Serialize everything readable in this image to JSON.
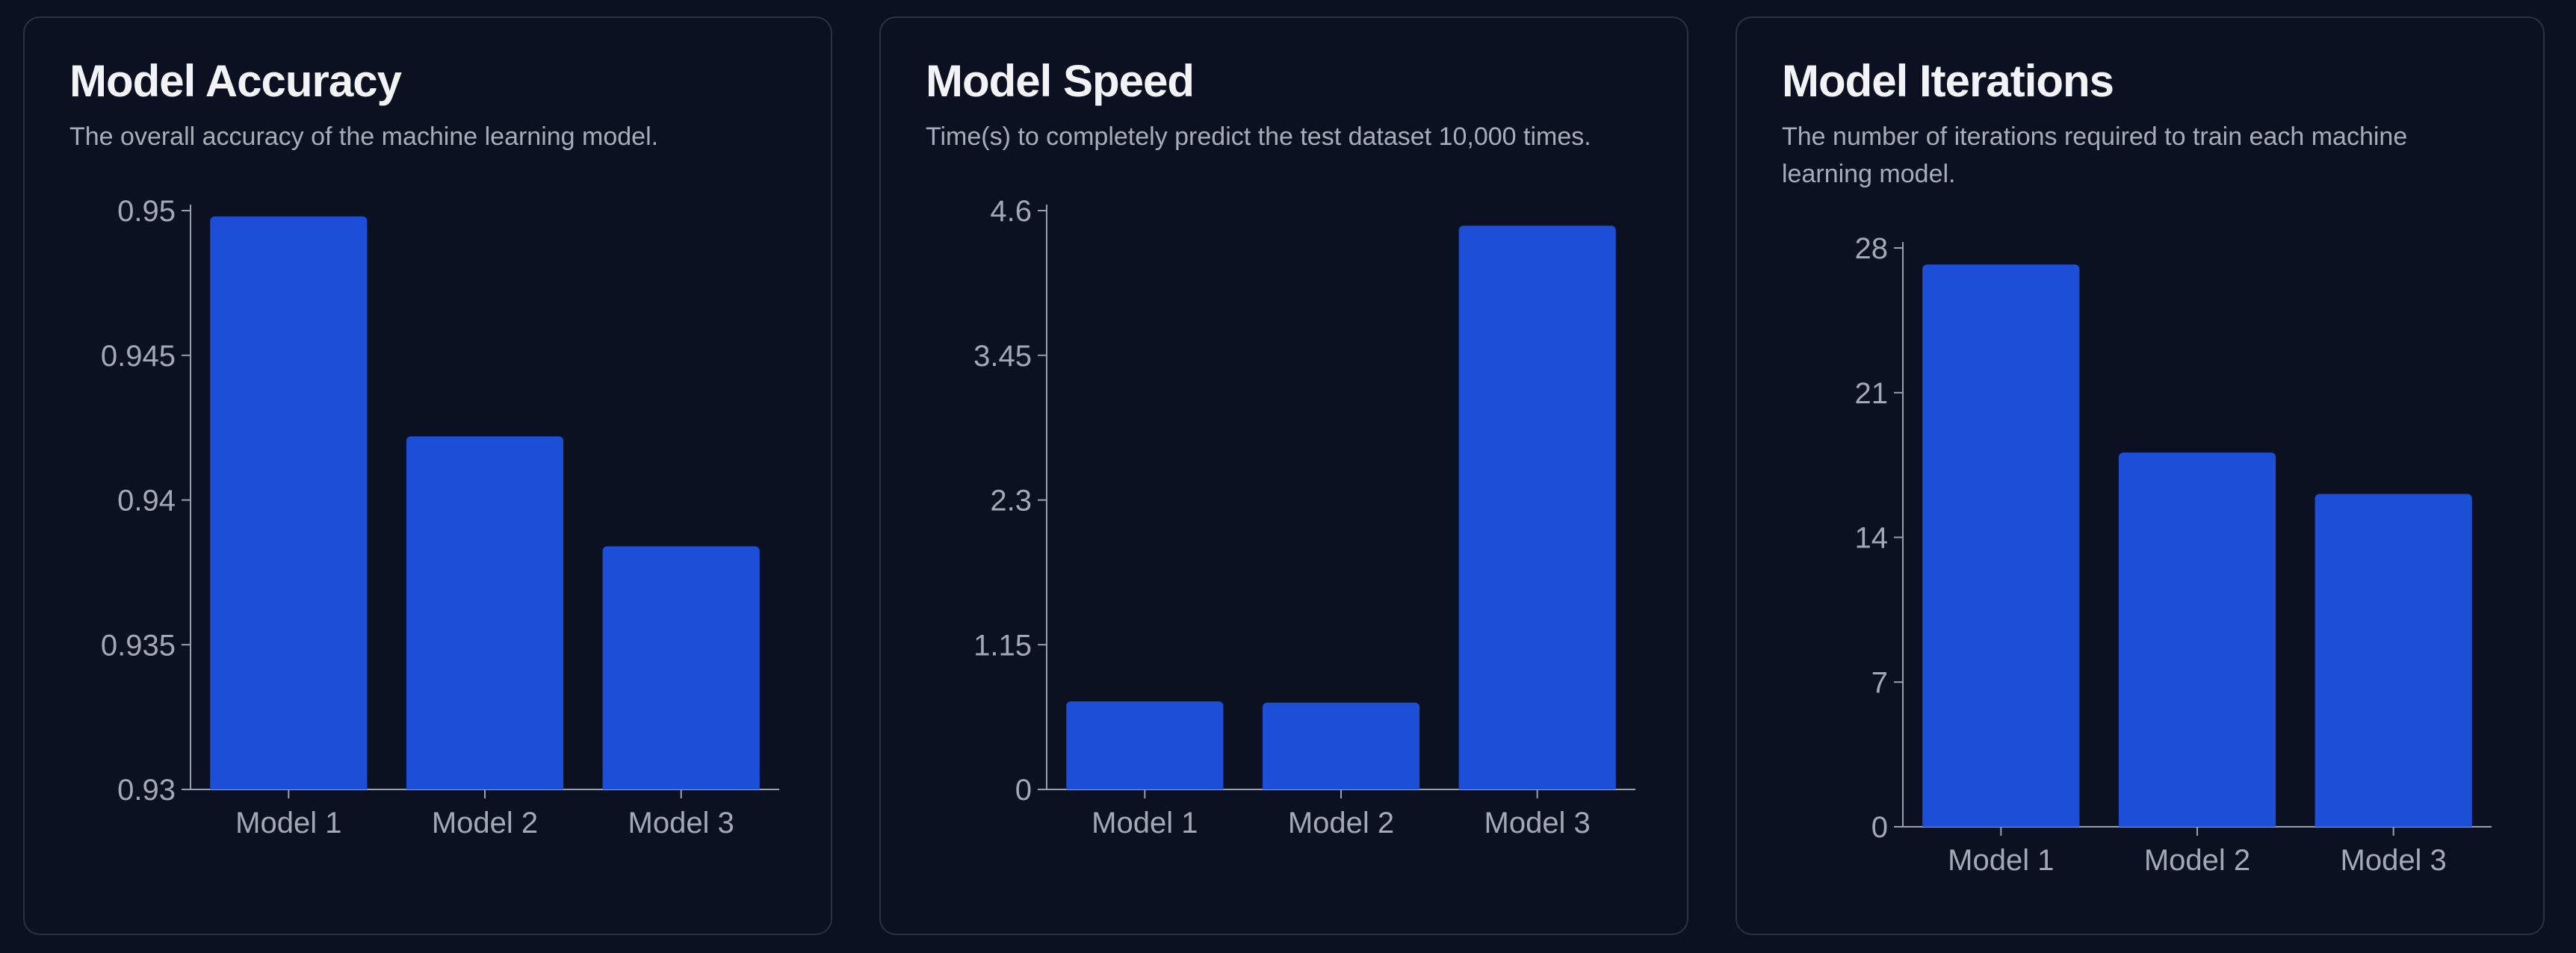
{
  "colors": {
    "background": "#0b1120",
    "card_border": "#283244",
    "bar": "#1d4ed8",
    "title": "#f1f3f6",
    "text_muted": "#a7adb8"
  },
  "cards": [
    {
      "title": "Model Accuracy",
      "description": "The overall accuracy of the machine learning model."
    },
    {
      "title": "Model Speed",
      "description": "Time(s) to completely predict the test dataset 10,000 times."
    },
    {
      "title": "Model Iterations",
      "description": "The number of iterations required to train each machine learning model."
    }
  ],
  "chart_data": [
    {
      "type": "bar",
      "title": "Model Accuracy",
      "categories": [
        "Model 1",
        "Model 2",
        "Model 3"
      ],
      "values": [
        0.9498,
        0.9422,
        0.9384
      ],
      "ylim": [
        0.93,
        0.95
      ],
      "yticks": [
        "0.93",
        "0.935",
        "0.94",
        "0.945",
        "0.95"
      ],
      "grid": false,
      "legend": "none"
    },
    {
      "type": "bar",
      "title": "Model Speed",
      "categories": [
        "Model 1",
        "Model 2",
        "Model 3"
      ],
      "values": [
        0.7,
        0.69,
        4.48
      ],
      "ylim": [
        0,
        4.6
      ],
      "yticks": [
        "0",
        "1.15",
        "2.3",
        "3.45",
        "4.6"
      ],
      "grid": false,
      "legend": "none"
    },
    {
      "type": "bar",
      "title": "Model Iterations",
      "categories": [
        "Model 1",
        "Model 2",
        "Model 3"
      ],
      "values": [
        27.2,
        18.1,
        16.1
      ],
      "ylim": [
        0,
        28
      ],
      "yticks": [
        "0",
        "7",
        "14",
        "21",
        "28"
      ],
      "grid": false,
      "legend": "none"
    }
  ]
}
